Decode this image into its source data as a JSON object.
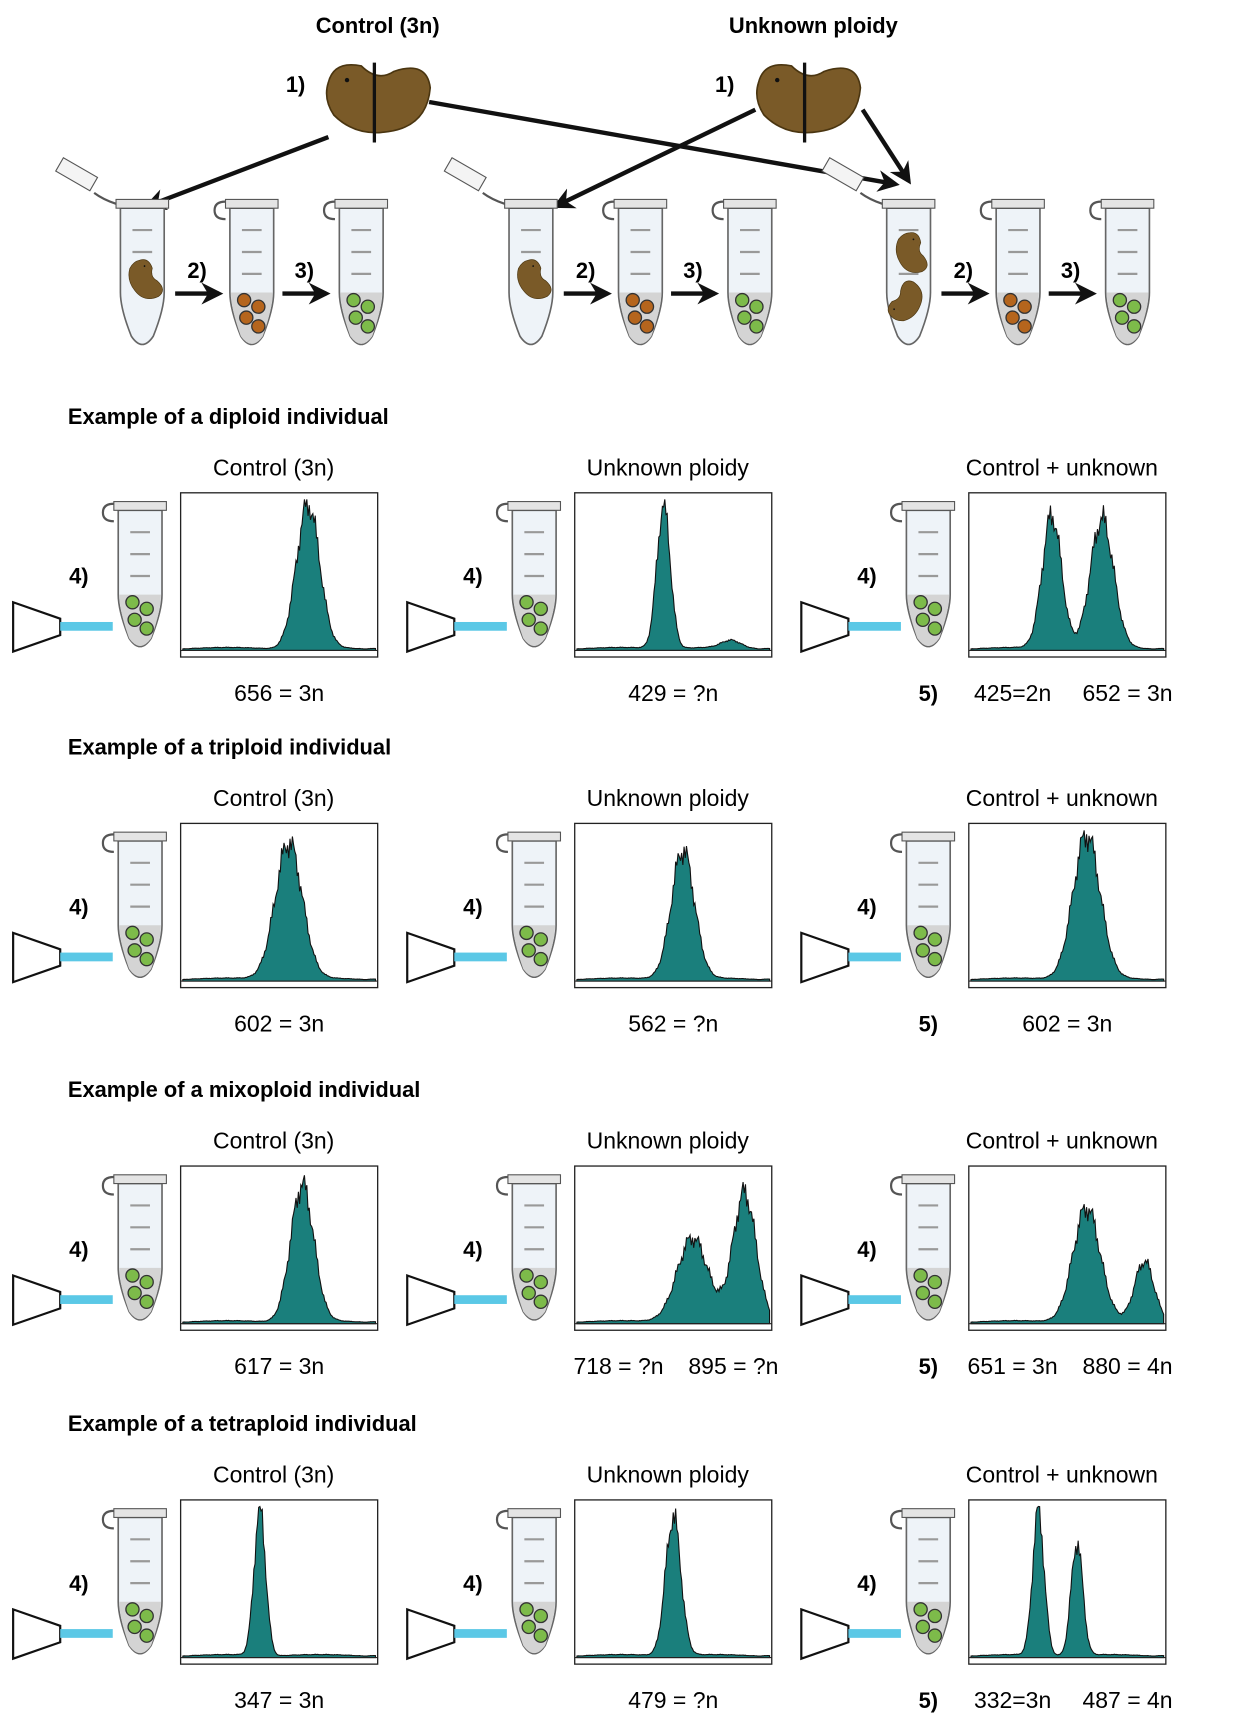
{
  "header": {
    "control_label": "Control (3n)",
    "unknown_label": "Unknown ploidy"
  },
  "steps": {
    "s1": "1)",
    "s2": "2)",
    "s3": "3)",
    "s4": "4)",
    "s5": "5)"
  },
  "sections": [
    {
      "title": "Example of a diploid individual",
      "panels": [
        {
          "title": "Control (3n)",
          "results": [
            "656 = 3n"
          ]
        },
        {
          "title": "Unknown ploidy",
          "results": [
            "429 = ?n"
          ]
        },
        {
          "title": "Control + unknown",
          "results": [
            "425=2n",
            "652 = 3n"
          ]
        }
      ]
    },
    {
      "title": "Example of a triploid individual",
      "panels": [
        {
          "title": "Control (3n)",
          "results": [
            "602 = 3n"
          ]
        },
        {
          "title": "Unknown ploidy",
          "results": [
            "562 = ?n"
          ]
        },
        {
          "title": "Control + unknown",
          "results": [
            "602 = 3n"
          ]
        }
      ]
    },
    {
      "title": "Example of a mixoploid individual",
      "panels": [
        {
          "title": "Control (3n)",
          "results": [
            "617 = 3n"
          ]
        },
        {
          "title": "Unknown ploidy",
          "results": [
            "718 = ?n",
            "895 = ?n"
          ]
        },
        {
          "title": "Control + unknown",
          "results": [
            "651 = 3n",
            "880 = 4n"
          ]
        }
      ]
    },
    {
      "title": "Example of a tetraploid individual",
      "panels": [
        {
          "title": "Control (3n)",
          "results": [
            "347 = 3n"
          ]
        },
        {
          "title": "Unknown ploidy",
          "results": [
            "479 = ?n"
          ]
        },
        {
          "title": "Control + unknown",
          "results": [
            "332=3n",
            "487 = 4n"
          ]
        }
      ]
    }
  ]
}
